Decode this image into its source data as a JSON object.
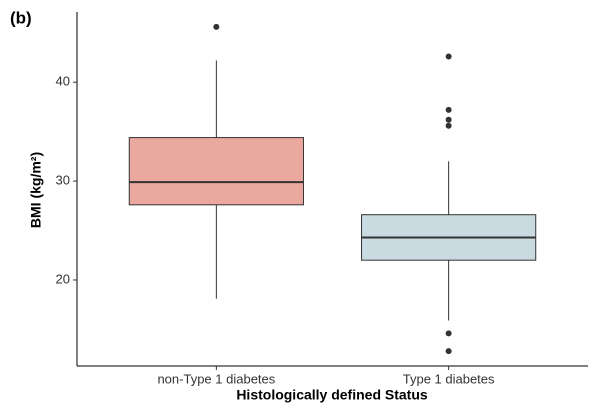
{
  "chart_data": {
    "type": "box",
    "panel_label": "(b)",
    "x_label": "Histologically defined Status",
    "y_label": "BMI (kg/m²)",
    "categories": [
      "non-Type 1 diabetes",
      "Type 1 diabetes"
    ],
    "colors": [
      "#eba89e",
      "#c9dae0"
    ],
    "boxes": [
      {
        "whisker_low": 18.1,
        "q1": 27.6,
        "median": 29.9,
        "q3": 34.4,
        "whisker_high": 42.2,
        "outliers": [
          45.6
        ]
      },
      {
        "whisker_low": 15.9,
        "q1": 22.0,
        "median": 24.3,
        "q3": 26.6,
        "whisker_high": 32.0,
        "outliers": [
          42.6,
          37.2,
          36.2,
          35.6,
          14.6,
          12.8
        ]
      }
    ],
    "ylim": [
      11.3,
      47.1
    ],
    "yticks": [
      20,
      30,
      40
    ]
  }
}
